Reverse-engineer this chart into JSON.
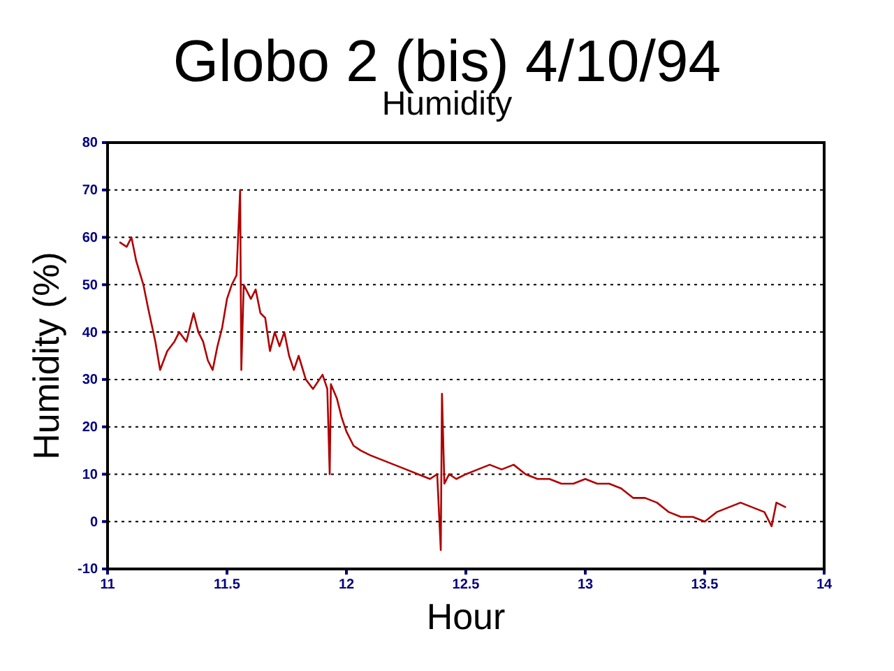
{
  "chart_data": {
    "type": "line",
    "title": "Globo 2 (bis) 4/10/94",
    "subtitle": "Humidity",
    "xlabel": "Hour",
    "ylabel": "Humidity (%)",
    "x": [
      11.05,
      11.08,
      11.1,
      11.12,
      11.15,
      11.17,
      11.2,
      11.22,
      11.25,
      11.28,
      11.3,
      11.33,
      11.36,
      11.38,
      11.4,
      11.42,
      11.44,
      11.46,
      11.48,
      11.5,
      11.52,
      11.54,
      11.555,
      11.56,
      11.57,
      11.6,
      11.62,
      11.64,
      11.66,
      11.68,
      11.7,
      11.72,
      11.74,
      11.76,
      11.78,
      11.8,
      11.83,
      11.86,
      11.9,
      11.92,
      11.93,
      11.935,
      11.96,
      11.98,
      12.0,
      12.03,
      12.06,
      12.1,
      12.15,
      12.2,
      12.25,
      12.3,
      12.35,
      12.38,
      12.395,
      12.4,
      12.41,
      12.43,
      12.46,
      12.5,
      12.55,
      12.6,
      12.65,
      12.7,
      12.75,
      12.8,
      12.85,
      12.9,
      12.95,
      13.0,
      13.05,
      13.1,
      13.15,
      13.2,
      13.25,
      13.3,
      13.35,
      13.4,
      13.45,
      13.5,
      13.55,
      13.6,
      13.65,
      13.7,
      13.75,
      13.78,
      13.8,
      13.84
    ],
    "series": [
      {
        "color": "#b00000",
        "values": [
          59,
          58,
          60,
          55,
          50,
          45,
          38,
          32,
          36,
          38,
          40,
          38,
          44,
          40,
          38,
          34,
          32,
          37,
          41,
          47,
          50,
          52,
          70,
          32,
          50,
          47,
          49,
          44,
          43,
          36,
          40,
          37,
          40,
          35,
          32,
          35,
          30,
          28,
          31,
          28,
          10,
          29,
          26,
          22,
          19,
          16,
          15,
          14,
          13,
          12,
          11,
          10,
          9,
          10,
          -6,
          27,
          8,
          10,
          9,
          10,
          11,
          12,
          11,
          12,
          10,
          9,
          9,
          8,
          8,
          9,
          8,
          8,
          7,
          5,
          5,
          4,
          2,
          1,
          1,
          0,
          2,
          3,
          4,
          3,
          2,
          -1,
          4,
          3
        ]
      }
    ],
    "xlim": [
      11,
      14
    ],
    "xticks": [
      11,
      11.5,
      12,
      12.5,
      13,
      13.5,
      14
    ],
    "ylim": [
      -10,
      80
    ],
    "yticks": [
      -10,
      0,
      10,
      20,
      30,
      40,
      50,
      60,
      70,
      80
    ],
    "grid": "y",
    "line_style": "solid",
    "marker": "none"
  }
}
